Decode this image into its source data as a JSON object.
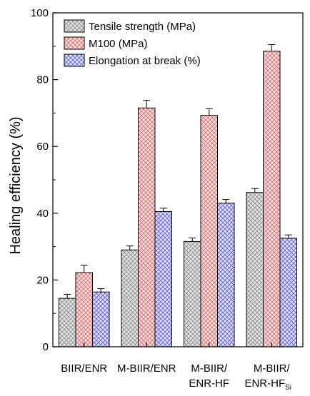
{
  "chart_data": {
    "type": "bar",
    "title": "",
    "xlabel": "",
    "ylabel": "Healing efficiency (%)",
    "ylim": [
      0,
      100
    ],
    "yticks": [
      "0",
      "20",
      "40",
      "60",
      "80",
      "100"
    ],
    "grid": false,
    "legend_position": "top-left",
    "categories": [
      {
        "line1": "BIIR/ENR",
        "line2": "",
        "sub": ""
      },
      {
        "line1": "M-BIIR/ENR",
        "line2": "",
        "sub": ""
      },
      {
        "line1": "M-BIIR/",
        "line2": "ENR-HF",
        "sub": ""
      },
      {
        "line1": "M-BIIR/",
        "line2": "ENR-HF",
        "sub": "Si"
      }
    ],
    "series": [
      {
        "name": "Tensile strength (MPa)",
        "values": [
          14.5,
          29.0,
          31.5,
          46.2
        ],
        "errors": [
          1.2,
          1.2,
          1.1,
          1.2
        ],
        "color": "#8a8a8a",
        "fill": "#e2e2e2"
      },
      {
        "name": "M100 (MPa)",
        "values": [
          22.2,
          71.5,
          69.3,
          88.5
        ],
        "errors": [
          2.2,
          2.3,
          2.0,
          2.0
        ],
        "color": "#d9686b",
        "fill": "#f9dede"
      },
      {
        "name": "Elongation at break (%)",
        "values": [
          16.4,
          40.5,
          43.0,
          32.5
        ],
        "errors": [
          1.0,
          1.0,
          1.1,
          1.0
        ],
        "color": "#5b5bd6",
        "fill": "#dedefa"
      }
    ]
  }
}
